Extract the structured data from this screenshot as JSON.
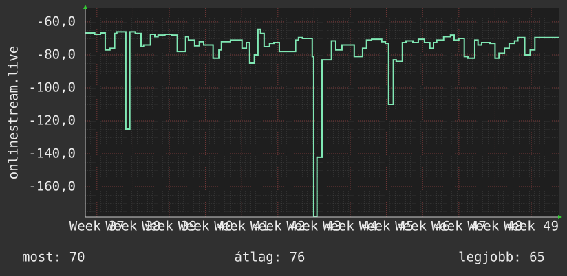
{
  "chart_data": {
    "type": "line",
    "ylabel": "onlinestream.live",
    "x": [
      36.68,
      36.94,
      37.1,
      37.23,
      37.36,
      37.49,
      37.55,
      37.8,
      37.91,
      38.06,
      38.22,
      38.29,
      38.48,
      38.6,
      38.69,
      38.88,
      39.07,
      39.22,
      39.45,
      39.53,
      39.7,
      39.83,
      39.95,
      40.21,
      40.37,
      40.44,
      40.69,
      40.84,
      41.01,
      41.13,
      41.22,
      41.35,
      41.45,
      41.52,
      41.62,
      41.77,
      41.89,
      42.04,
      42.49,
      42.57,
      42.68,
      42.95,
      42.99,
      43.08,
      43.22,
      43.48,
      43.6,
      43.77,
      44.11,
      44.34,
      44.45,
      44.59,
      44.87,
      44.97,
      45.06,
      45.19,
      45.27,
      45.44,
      45.54,
      45.73,
      45.88,
      46.05,
      46.2,
      46.3,
      46.39,
      46.58,
      46.77,
      46.87,
      47.0,
      47.15,
      47.25,
      47.44,
      47.53,
      47.63,
      47.86,
      48.0,
      48.11,
      48.26,
      48.39,
      48.54,
      48.63,
      48.82,
      48.97,
      49.1,
      49.76
    ],
    "series": [
      {
        "color": "#80e8b4",
        "values": [
          -66.7,
          -67.5,
          -66.7,
          -77,
          -76,
          -67,
          -66,
          -125,
          -66,
          -67,
          -75,
          -74,
          -67.5,
          -69,
          -68,
          -67.5,
          -68,
          -78,
          -69,
          -71,
          -74.5,
          -72,
          -74,
          -82,
          -77,
          -72,
          -71,
          -71,
          -76,
          -72.5,
          -85,
          -80,
          -64.5,
          -67,
          -75,
          -73,
          -72.5,
          -78,
          -71,
          -69.5,
          -70,
          -81,
          -178,
          -142,
          -83,
          -71.5,
          -77,
          -74,
          -81,
          -76,
          -71,
          -70.5,
          -72,
          -73,
          -110,
          -83,
          -84,
          -72.5,
          -71.5,
          -72.5,
          -70.5,
          -72.5,
          -76,
          -72.5,
          -71,
          -69,
          -68,
          -71,
          -70,
          -81,
          -82,
          -71,
          -74,
          -72.5,
          -73,
          -82,
          -79,
          -76,
          -73,
          -71.5,
          -69.5,
          -80,
          -77,
          -69.5,
          -69.5
        ]
      }
    ],
    "xlim": [
      36.68,
      49.76
    ],
    "xticks": [
      {
        "value": 37,
        "label": "Week 37"
      },
      {
        "value": 38,
        "label": "Week 38"
      },
      {
        "value": 39,
        "label": "Week 39"
      },
      {
        "value": 40,
        "label": "Week 40"
      },
      {
        "value": 41,
        "label": "Week 41"
      },
      {
        "value": 42,
        "label": "Week 42"
      },
      {
        "value": 43,
        "label": "Week 43"
      },
      {
        "value": 44,
        "label": "Week 44"
      },
      {
        "value": 45,
        "label": "Week 45"
      },
      {
        "value": 46,
        "label": "Week 46"
      },
      {
        "value": 47,
        "label": "Week 47"
      },
      {
        "value": 48,
        "label": "Week 48"
      },
      {
        "value": 49,
        "label": "Week 49"
      }
    ],
    "ylim": [
      -178.3,
      -51.7
    ],
    "yticks": [
      {
        "value": -60,
        "label": "-60,0"
      },
      {
        "value": -80,
        "label": "-80,0"
      },
      {
        "value": -100,
        "label": "-100,0"
      },
      {
        "value": -120,
        "label": "-120,0"
      },
      {
        "value": -140,
        "label": "-140,0"
      },
      {
        "value": -160,
        "label": "-160,0"
      }
    ],
    "grid": true,
    "stats": [
      "most: 70",
      "átlag: 76",
      "legjobb: 65"
    ]
  }
}
